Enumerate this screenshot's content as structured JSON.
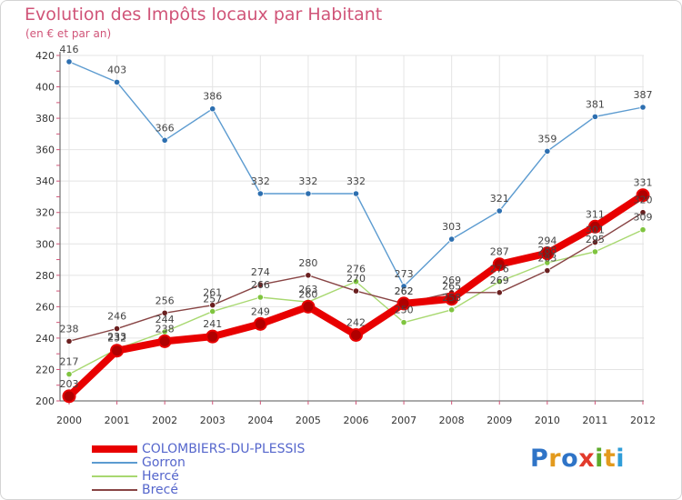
{
  "title": "Evolution des Impôts locaux par Habitant",
  "subtitle": "(en € et par an)",
  "logo": {
    "letters": [
      "P",
      "r",
      "o",
      "x",
      "i",
      "t",
      "i"
    ],
    "colors": [
      "#2f74c7",
      "#e39a1d",
      "#2f74c7",
      "#e23b2c",
      "#5dab2a",
      "#e39a1d",
      "#2f9dd8"
    ]
  },
  "colors": {
    "title": "#d05478",
    "grid": "#e4e4e4",
    "axis": "#555555",
    "background": "#ffffff"
  },
  "chart_data": {
    "type": "line",
    "title": "Evolution des Impôts locaux par Habitant",
    "subtitle": "(en € et par an)",
    "xlabel": "",
    "ylabel": "",
    "categories": [
      "2000",
      "2001",
      "2002",
      "2003",
      "2004",
      "2005",
      "2006",
      "2007",
      "2008",
      "2009",
      "2010",
      "2011",
      "2012"
    ],
    "yticks": [
      200,
      220,
      240,
      260,
      280,
      300,
      320,
      340,
      360,
      380,
      400,
      420
    ],
    "ylim": [
      200,
      420
    ],
    "grid": true,
    "legend": "bottom-left",
    "series": [
      {
        "name": "COLOMBIERS-DU-PLESSIS",
        "color": "#e80000",
        "marker": "#b00000",
        "values": [
          203,
          232,
          238,
          241,
          249,
          260,
          242,
          262,
          265,
          287,
          294,
          311,
          331
        ]
      },
      {
        "name": "Gorron",
        "color": "#5c9bd0",
        "marker": "#2d6fb0",
        "values": [
          416,
          403,
          366,
          386,
          332,
          332,
          332,
          273,
          303,
          321,
          359,
          381,
          387
        ]
      },
      {
        "name": "Hercé",
        "color": "#a8d870",
        "marker": "#7fc43f",
        "values": [
          217,
          233,
          244,
          257,
          266,
          263,
          276,
          250,
          258,
          276,
          288,
          295,
          309
        ]
      },
      {
        "name": "Brecé",
        "color": "#884444",
        "marker": "#6a1f1f",
        "values": [
          238,
          246,
          256,
          261,
          274,
          280,
          270,
          262,
          269,
          269,
          283,
          301,
          320
        ]
      }
    ]
  }
}
